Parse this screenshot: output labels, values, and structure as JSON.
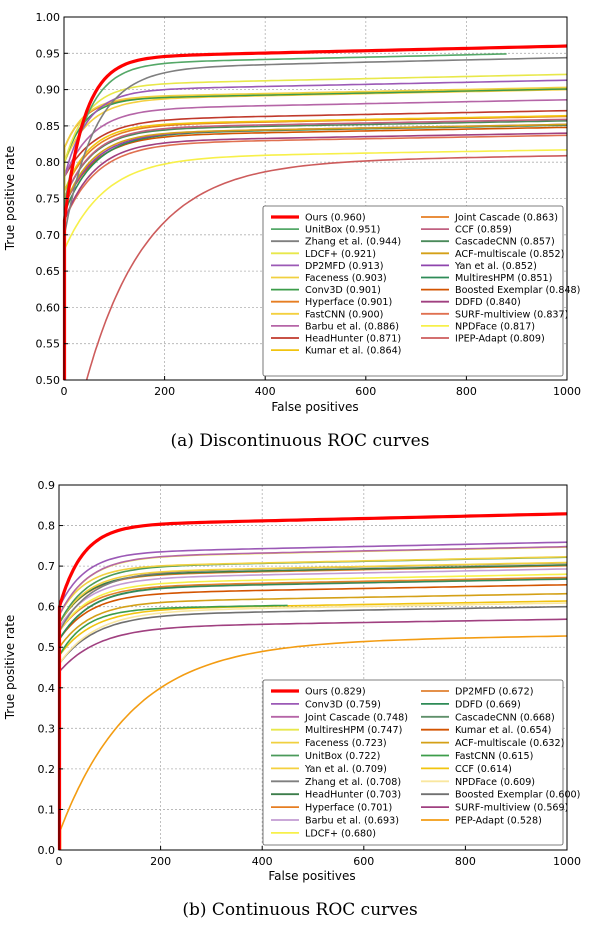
{
  "chart_data": [
    {
      "type": "line",
      "title": "",
      "caption": "(a)  Discontinuous ROC curves",
      "xlabel": "False positives",
      "ylabel": "True positive rate",
      "xlim": [
        0,
        1000
      ],
      "ylim": [
        0.5,
        1.0
      ],
      "xticks": [
        "0",
        "200",
        "400",
        "600",
        "800",
        "1000"
      ],
      "yticks": [
        "0.50",
        "0.55",
        "0.60",
        "0.65",
        "0.70",
        "0.75",
        "0.80",
        "0.85",
        "0.90",
        "0.95",
        "1.00"
      ],
      "legend_location": "lower-right",
      "grid": true,
      "series": [
        {
          "name": "Ours (0.960)",
          "color": "#ff0000",
          "final": 0.96,
          "start": 0.72,
          "rise": 40,
          "xend": 1000,
          "bold": true
        },
        {
          "name": "UnitBox (0.951)",
          "color": "#55a868",
          "final": 0.951,
          "start": 0.74,
          "rise": 45,
          "xend": 880
        },
        {
          "name": "Zhang et al. (0.944)",
          "color": "#7f7f7f",
          "final": 0.944,
          "start": 0.7,
          "rise": 60,
          "xend": 1000
        },
        {
          "name": "LDCF+ (0.921)",
          "color": "#e8e84a",
          "final": 0.921,
          "start": 0.8,
          "rise": 45,
          "xend": 1000
        },
        {
          "name": "DP2MFD (0.913)",
          "color": "#9b59b6",
          "final": 0.913,
          "start": 0.78,
          "rise": 45,
          "xend": 1000
        },
        {
          "name": "Faceness (0.903)",
          "color": "#f0d040",
          "final": 0.903,
          "start": 0.82,
          "rise": 40,
          "xend": 1000
        },
        {
          "name": "Conv3D (0.901)",
          "color": "#3c9d4a",
          "final": 0.901,
          "start": 0.8,
          "rise": 40,
          "xend": 1000
        },
        {
          "name": "Hyperface (0.901)",
          "color": "#e67e22",
          "final": 0.901,
          "start": 0.82,
          "rise": 40,
          "xend": 1000
        },
        {
          "name": "FastCNN (0.900)",
          "color": "#f4d03f",
          "final": 0.9,
          "start": 0.8,
          "rise": 50,
          "xend": 1000
        },
        {
          "name": "Barbu et al. (0.886)",
          "color": "#b565a7",
          "final": 0.886,
          "start": 0.78,
          "rise": 55,
          "xend": 1000
        },
        {
          "name": "HeadHunter (0.871)",
          "color": "#c0392b",
          "final": 0.871,
          "start": 0.78,
          "rise": 60,
          "xend": 1000
        },
        {
          "name": "Kumar et al. (0.864)",
          "color": "#f1c40f",
          "final": 0.864,
          "start": 0.76,
          "rise": 50,
          "xend": 1000
        },
        {
          "name": "Joint Cascade (0.863)",
          "color": "#e67e22",
          "final": 0.863,
          "start": 0.76,
          "rise": 55,
          "xend": 1000
        },
        {
          "name": "CCF (0.859)",
          "color": "#c06080",
          "final": 0.859,
          "start": 0.75,
          "rise": 55,
          "xend": 1000
        },
        {
          "name": "CascadeCNN (0.857)",
          "color": "#4a8a5a",
          "final": 0.857,
          "start": 0.75,
          "rise": 55,
          "xend": 1000
        },
        {
          "name": "ACF-multiscale (0.852)",
          "color": "#d4a017",
          "final": 0.852,
          "start": 0.74,
          "rise": 55,
          "xend": 1000
        },
        {
          "name": "Yan et al. (0.852)",
          "color": "#8e44ad",
          "final": 0.852,
          "start": 0.74,
          "rise": 60,
          "xend": 1000
        },
        {
          "name": "MultiresHPM (0.851)",
          "color": "#2e8b57",
          "final": 0.851,
          "start": 0.73,
          "rise": 60,
          "xend": 1000
        },
        {
          "name": "Boosted Exemplar (0.848)",
          "color": "#d35400",
          "final": 0.848,
          "start": 0.74,
          "rise": 60,
          "xend": 1000
        },
        {
          "name": "DDFD (0.840)",
          "color": "#a04080",
          "final": 0.84,
          "start": 0.72,
          "rise": 60,
          "xend": 1000
        },
        {
          "name": "SURF-multiview (0.837)",
          "color": "#e07050",
          "final": 0.837,
          "start": 0.72,
          "rise": 65,
          "xend": 1000
        },
        {
          "name": "NPDFace (0.817)",
          "color": "#f7f04a",
          "final": 0.817,
          "start": 0.68,
          "rise": 80,
          "xend": 1000
        },
        {
          "name": "IPEP-Adapt (0.809)",
          "color": "#cd5c5c",
          "final": 0.809,
          "start": 0.5,
          "rise": 120,
          "xend": 1000,
          "xstart": 45
        }
      ]
    },
    {
      "type": "line",
      "title": "",
      "caption": "(b)  Continuous ROC curves",
      "xlabel": "False positives",
      "ylabel": "True positive rate",
      "xlim": [
        0,
        1000
      ],
      "ylim": [
        0.0,
        0.9
      ],
      "xticks": [
        "0",
        "200",
        "400",
        "600",
        "800",
        "1000"
      ],
      "yticks": [
        "0.0",
        "0.1",
        "0.2",
        "0.3",
        "0.4",
        "0.5",
        "0.6",
        "0.7",
        "0.8",
        "0.9"
      ],
      "legend_location": "lower-right",
      "grid": true,
      "series": [
        {
          "name": "Ours (0.829)",
          "color": "#ff0000",
          "final": 0.829,
          "start": 0.6,
          "rise": 45,
          "xend": 1000,
          "bold": true
        },
        {
          "name": "Conv3D (0.759)",
          "color": "#9b59b6",
          "final": 0.759,
          "start": 0.6,
          "rise": 50,
          "xend": 1000
        },
        {
          "name": "Joint Cascade (0.748)",
          "color": "#b565a7",
          "final": 0.748,
          "start": 0.58,
          "rise": 55,
          "xend": 1000
        },
        {
          "name": "MultiresHPM (0.747)",
          "color": "#e8e84a",
          "final": 0.747,
          "start": 0.58,
          "rise": 55,
          "xend": 1000
        },
        {
          "name": "Faceness (0.723)",
          "color": "#f0d040",
          "final": 0.723,
          "start": 0.58,
          "rise": 50,
          "xend": 1000
        },
        {
          "name": "UnitBox (0.722)",
          "color": "#4a9a5a",
          "final": 0.722,
          "start": 0.56,
          "rise": 55,
          "xend": 1000
        },
        {
          "name": "Yan et al. (0.709)",
          "color": "#f4d03f",
          "final": 0.709,
          "start": 0.56,
          "rise": 55,
          "xend": 1000
        },
        {
          "name": "Zhang et al. (0.708)",
          "color": "#7f7f7f",
          "final": 0.708,
          "start": 0.54,
          "rise": 60,
          "xend": 1000
        },
        {
          "name": "HeadHunter (0.703)",
          "color": "#3c7d4a",
          "final": 0.703,
          "start": 0.56,
          "rise": 55,
          "xend": 1000
        },
        {
          "name": "Hyperface (0.701)",
          "color": "#e67e22",
          "final": 0.701,
          "start": 0.56,
          "rise": 55,
          "xend": 1000
        },
        {
          "name": "Barbu et al. (0.693)",
          "color": "#c39bd3",
          "final": 0.693,
          "start": 0.55,
          "rise": 60,
          "xend": 1000
        },
        {
          "name": "LDCF+ (0.680)",
          "color": "#f7f04a",
          "final": 0.68,
          "start": 0.54,
          "rise": 60,
          "xend": 1000
        },
        {
          "name": "DP2MFD (0.672)",
          "color": "#e08030",
          "final": 0.672,
          "start": 0.54,
          "rise": 60,
          "xend": 1000
        },
        {
          "name": "DDFD (0.669)",
          "color": "#2e8b57",
          "final": 0.669,
          "start": 0.52,
          "rise": 60,
          "xend": 1000
        },
        {
          "name": "CascadeCNN (0.668)",
          "color": "#5f8f6a",
          "final": 0.668,
          "start": 0.52,
          "rise": 60,
          "xend": 1000
        },
        {
          "name": "Kumar et al. (0.654)",
          "color": "#d35400",
          "final": 0.654,
          "start": 0.52,
          "rise": 60,
          "xend": 1000
        },
        {
          "name": "ACF-multiscale (0.632)",
          "color": "#d4a017",
          "final": 0.632,
          "start": 0.5,
          "rise": 60,
          "xend": 1000
        },
        {
          "name": "FastCNN (0.615)",
          "color": "#3c9d4a",
          "final": 0.615,
          "start": 0.48,
          "rise": 50,
          "xend": 450
        },
        {
          "name": "CCF (0.614)",
          "color": "#f1c40f",
          "final": 0.614,
          "start": 0.48,
          "rise": 65,
          "xend": 1000
        },
        {
          "name": "NPDFace (0.609)",
          "color": "#f9e79f",
          "final": 0.609,
          "start": 0.46,
          "rise": 70,
          "xend": 1000
        },
        {
          "name": "Boosted Exemplar (0.600)",
          "color": "#707070",
          "final": 0.6,
          "start": 0.46,
          "rise": 70,
          "xend": 1000
        },
        {
          "name": "SURF-multiview (0.569)",
          "color": "#a04080",
          "final": 0.569,
          "start": 0.44,
          "rise": 75,
          "xend": 1000
        },
        {
          "name": "PEP-Adapt (0.528)",
          "color": "#f39c12",
          "final": 0.528,
          "start": 0.05,
          "rise": 140,
          "xend": 1000,
          "xstart": 3
        }
      ]
    }
  ]
}
